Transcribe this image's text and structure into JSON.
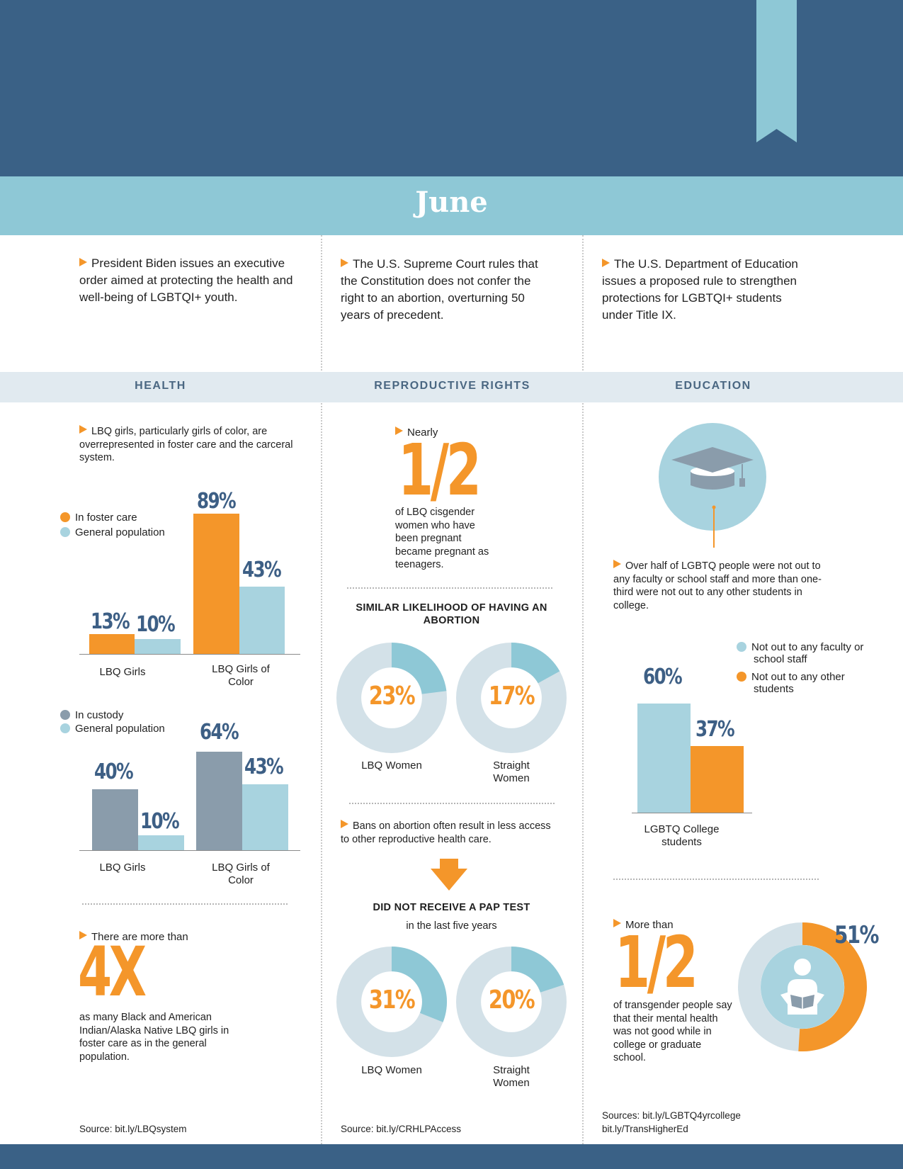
{
  "month": "June",
  "colors": {
    "navy": "#3a6186",
    "light_blue_band": "#8ec8d6",
    "orange": "#f4962a",
    "light_blue_bar": "#a8d3df",
    "gray_blue_bar": "#8a9cab",
    "donut_track": "#d3e1e8",
    "donut_segment": "#8ec8d6"
  },
  "news": [
    {
      "text": "President Biden issues an executive order aimed at protecting the health and well-being of LGBTQI+ youth."
    },
    {
      "text": "The U.S. Supreme Court rules that the Constitution does not confer the right to an abortion, overturning 50 years of precedent."
    },
    {
      "text": "The U.S. Department of Education issues a proposed rule to strengthen protections for LGBTQI+ students under Title IX."
    }
  ],
  "sections": {
    "health": "HEALTH",
    "reproductive": "REPRODUCTIVE RIGHTS",
    "education": "EDUCATION"
  },
  "health": {
    "intro": "LBQ girls, particularly girls of color, are overrepresented in foster care and the carceral system.",
    "big_stat_lead": "There are more than",
    "big_stat": "4X",
    "big_stat_text": "as many Black and American Indian/Alaska Native LBQ girls in foster care as in the general population.",
    "source": "Source: bit.ly/LBQsystem"
  },
  "reproductive": {
    "stat_lead": "Nearly",
    "stat": "1/2",
    "stat_text": "of LBQ cisgender women who have been pregnant became pregnant as teenagers.",
    "abortion_heading": "SIMILAR LIKELIHOOD OF HAVING AN ABORTION",
    "bans_text": "Bans on abortion often result in less access to other reproductive health care.",
    "pap_heading": "DID NOT RECEIVE A PAP TEST",
    "pap_subheading": "in the last five years",
    "source": "Source: bit.ly/CRHLPAccess"
  },
  "education": {
    "intro": "Over half of LGBTQ people were not out to any faculty or school staff and more than one-third were not out to any other students in college.",
    "stat_lead": "More than",
    "stat": "1/2",
    "stat_text": "of transgender people say that their mental health was not good while in college or graduate school.",
    "donut_pct_label": "51%",
    "source_line1": "Sources: bit.ly/LGBTQ4yrcollege",
    "source_line2": "bit.ly/TransHigherEd"
  },
  "chart_data": [
    {
      "type": "bar",
      "id": "foster",
      "categories": [
        "LBQ Girls",
        "LBQ Girls of Color"
      ],
      "series": [
        {
          "name": "In foster care",
          "color": "#f4962a",
          "values": [
            13,
            89
          ],
          "labels": [
            "13%",
            "89%"
          ]
        },
        {
          "name": "General population",
          "color": "#a8d3df",
          "values": [
            10,
            43
          ],
          "labels": [
            "10%",
            "43%"
          ]
        }
      ],
      "ylim": [
        0,
        100
      ]
    },
    {
      "type": "bar",
      "id": "custody",
      "categories": [
        "LBQ Girls",
        "LBQ Girls of Color"
      ],
      "series": [
        {
          "name": "In custody",
          "color": "#8a9cab",
          "values": [
            40,
            64
          ],
          "labels": [
            "40%",
            "64%"
          ]
        },
        {
          "name": "General population",
          "color": "#a8d3df",
          "values": [
            10,
            43
          ],
          "labels": [
            "10%",
            "43%"
          ]
        }
      ],
      "ylim": [
        0,
        100
      ]
    },
    {
      "type": "pie",
      "id": "abortion",
      "title": "SIMILAR LIKELIHOOD OF HAVING AN ABORTION",
      "categories": [
        "LBQ Women",
        "Straight Women"
      ],
      "values": [
        23,
        17
      ],
      "labels": [
        "23%",
        "17%"
      ]
    },
    {
      "type": "pie",
      "id": "pap",
      "title": "DID NOT RECEIVE A PAP TEST",
      "categories": [
        "LBQ Women",
        "Straight Women"
      ],
      "values": [
        31,
        20
      ],
      "labels": [
        "31%",
        "20%"
      ]
    },
    {
      "type": "bar",
      "id": "college",
      "categories": [
        "LGBTQ College students"
      ],
      "series": [
        {
          "name": "Not out to any faculty or school staff",
          "color": "#a8d3df",
          "values": [
            60
          ],
          "labels": [
            "60%"
          ]
        },
        {
          "name": "Not out to any other students",
          "color": "#f4962a",
          "values": [
            37
          ],
          "labels": [
            "37%"
          ]
        }
      ],
      "ylim": [
        0,
        100
      ]
    },
    {
      "type": "pie",
      "id": "mental",
      "values": [
        51
      ],
      "labels": [
        "51%"
      ]
    }
  ]
}
